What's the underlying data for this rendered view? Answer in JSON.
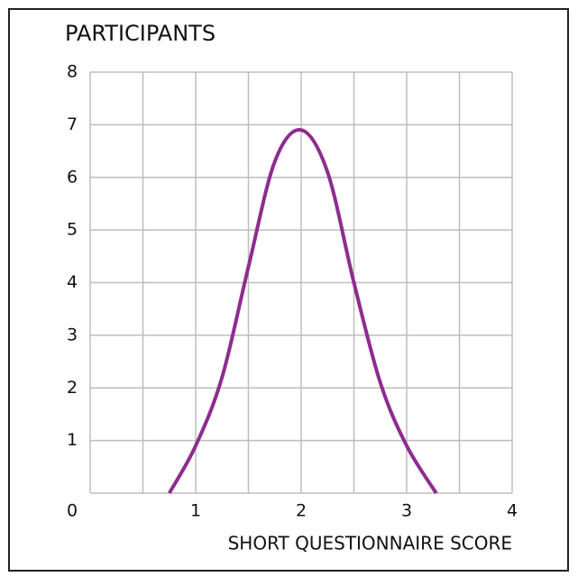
{
  "chart_data": {
    "type": "line",
    "title": "PARTICIPANTS",
    "x_label": "SHORT QUESTIONNAIRE SCORE",
    "x": [
      0.75,
      1,
      1.25,
      1.5,
      1.75,
      2,
      2.25,
      2.5,
      2.75,
      3,
      3.28
    ],
    "series": [
      {
        "color": "#8e2c8f",
        "values": [
          0,
          0.9,
          2.2,
          4.3,
          6.3,
          6.9,
          6.1,
          4.0,
          2.1,
          0.9,
          0
        ]
      }
    ],
    "xlim": [
      0,
      4
    ],
    "xticks": [
      0,
      1,
      2,
      3,
      4
    ],
    "xminor_ticks": [
      0.5,
      1.5,
      2.5,
      3.5
    ],
    "ylim": [
      0,
      8
    ],
    "yticks": [
      0,
      1,
      2,
      3,
      4,
      5,
      6,
      7,
      8
    ],
    "grid": true
  }
}
